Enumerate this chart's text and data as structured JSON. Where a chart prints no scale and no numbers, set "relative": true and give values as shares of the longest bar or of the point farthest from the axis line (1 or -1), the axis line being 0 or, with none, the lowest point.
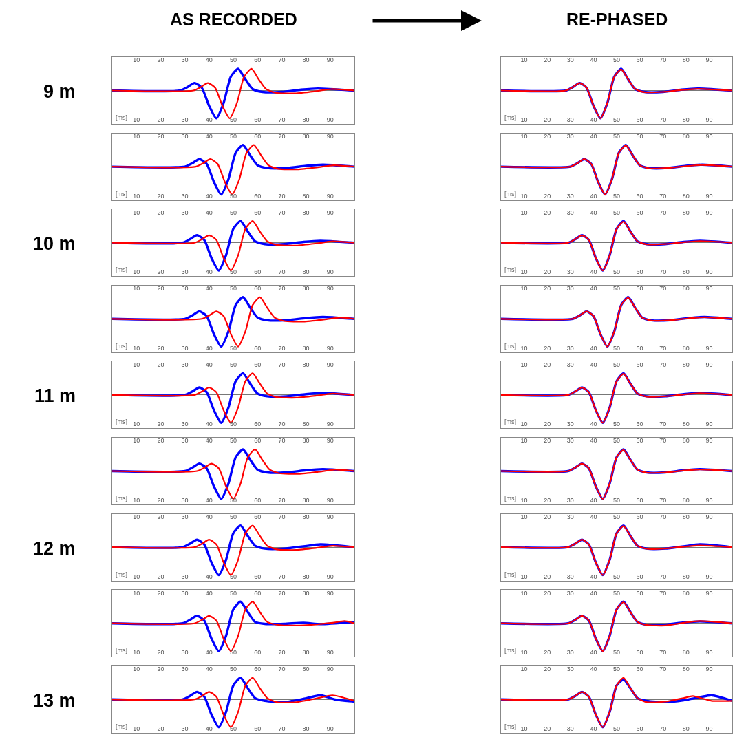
{
  "chart_data": [
    {
      "type": "line",
      "relative": true,
      "title": "AS RECORDED",
      "ylabel": "9 m",
      "xlabel": "[ms]",
      "xlim": [
        0,
        100
      ],
      "xticks": [
        10,
        20,
        30,
        40,
        50,
        60,
        70,
        80,
        90
      ],
      "x2lim": [
        0,
        100
      ],
      "x2ticks": [
        10,
        20,
        30,
        40,
        50,
        60,
        70,
        80,
        90
      ],
      "tick_labels": "x",
      "series": [
        {
          "color": "#0000ff",
          "x": [
            0,
            28,
            31,
            34,
            37,
            40,
            43,
            46,
            49,
            52,
            55,
            58,
            62,
            70,
            78,
            85,
            100
          ],
          "values": [
            0,
            0,
            0.12,
            0.27,
            0.1,
            -0.55,
            -1,
            -0.45,
            0.5,
            0.78,
            0.4,
            0.05,
            -0.05,
            -0.05,
            0.03,
            0.07,
            0
          ]
        },
        {
          "color": "#ff0000",
          "x": [
            0,
            33.5,
            36.5,
            39.5,
            42.5,
            45.5,
            48.5,
            51.5,
            54.5,
            57.5,
            60.5,
            63.5,
            67.5,
            75.5,
            83.5,
            90.5,
            100
          ],
          "values": [
            0,
            0,
            0.12,
            0.27,
            0.1,
            -0.55,
            -1,
            -0.45,
            0.5,
            0.78,
            0.4,
            0.05,
            -0.08,
            -0.1,
            -0.03,
            0.05,
            0
          ]
        }
      ]
    },
    {
      "type": "line",
      "relative": true,
      "title": "RE-PHASED",
      "xlabel": "[ms]",
      "xlim": [
        0,
        100
      ],
      "xticks": [
        10,
        20,
        30,
        40,
        50,
        60,
        70,
        80,
        90
      ],
      "x2lim": [
        0,
        100
      ],
      "x2ticks": [
        10,
        20,
        30,
        40,
        50,
        60,
        70,
        80,
        90
      ],
      "tick_labels": "x",
      "series": [
        {
          "color": "#0000ff",
          "x": [
            0,
            28,
            31,
            34,
            37,
            40,
            43,
            46,
            49,
            52,
            55,
            58,
            62,
            70,
            78,
            85,
            100
          ],
          "values": [
            0,
            0,
            0.12,
            0.27,
            0.1,
            -0.55,
            -1,
            -0.45,
            0.5,
            0.78,
            0.4,
            0.05,
            -0.05,
            -0.05,
            0.03,
            0.07,
            0
          ]
        },
        {
          "color": "#ff0000",
          "x": [
            0,
            28,
            31,
            34,
            37,
            40,
            43,
            46,
            49,
            52,
            55,
            58,
            62,
            70,
            78,
            85,
            100
          ],
          "values": [
            0,
            0,
            0.12,
            0.27,
            0.1,
            -0.55,
            -1,
            -0.45,
            0.5,
            0.76,
            0.4,
            0.05,
            -0.06,
            -0.05,
            0.02,
            0.06,
            0
          ]
        }
      ]
    },
    {
      "type": "line",
      "relative": true,
      "xlabel": "[ms]",
      "xlim": [
        0,
        100
      ],
      "xticks": [
        10,
        20,
        30,
        40,
        50,
        60,
        70,
        80,
        90
      ],
      "x2lim": [
        0,
        100
      ],
      "x2ticks": [
        10,
        20,
        30,
        40,
        50,
        60,
        70,
        80,
        90
      ],
      "tick_labels": "x",
      "series": [
        {
          "color": "#0000ff",
          "x": [
            0,
            30,
            33,
            36,
            39,
            42,
            45,
            48,
            51,
            54,
            57,
            60,
            64,
            72,
            80,
            87,
            100
          ],
          "values": [
            0,
            0,
            0.12,
            0.27,
            0.1,
            -0.55,
            -1,
            -0.45,
            0.5,
            0.78,
            0.4,
            0.05,
            -0.05,
            -0.05,
            0.03,
            0.07,
            0
          ]
        },
        {
          "color": "#ff0000",
          "x": [
            0,
            34.5,
            37.5,
            40.5,
            43.5,
            46.5,
            49.5,
            52.5,
            55.5,
            58.5,
            61.5,
            64.5,
            68.5,
            76.5,
            84.5,
            91.5,
            100
          ],
          "values": [
            0,
            0,
            0.12,
            0.27,
            0.1,
            -0.55,
            -1,
            -0.45,
            0.5,
            0.78,
            0.4,
            0.05,
            -0.08,
            -0.1,
            -0.03,
            0.05,
            0
          ]
        }
      ]
    },
    {
      "type": "line",
      "relative": true,
      "xlabel": "[ms]",
      "xlim": [
        0,
        100
      ],
      "xticks": [
        10,
        20,
        30,
        40,
        50,
        60,
        70,
        80,
        90
      ],
      "x2lim": [
        0,
        100
      ],
      "x2ticks": [
        10,
        20,
        30,
        40,
        50,
        60,
        70,
        80,
        90
      ],
      "tick_labels": "x",
      "series": [
        {
          "color": "#0000ff",
          "x": [
            0,
            30,
            33,
            36,
            39,
            42,
            45,
            48,
            51,
            54,
            57,
            60,
            64,
            72,
            80,
            87,
            100
          ],
          "values": [
            0,
            0,
            0.12,
            0.27,
            0.1,
            -0.55,
            -1,
            -0.45,
            0.5,
            0.78,
            0.4,
            0.05,
            -0.05,
            -0.05,
            0.03,
            0.07,
            0
          ]
        },
        {
          "color": "#ff0000",
          "x": [
            0,
            30,
            33,
            36,
            39,
            42,
            45,
            48,
            51,
            54,
            57,
            60,
            64,
            72,
            80,
            87,
            100
          ],
          "values": [
            0,
            0,
            0.12,
            0.27,
            0.1,
            -0.55,
            -1,
            -0.45,
            0.5,
            0.76,
            0.4,
            0.05,
            -0.06,
            -0.05,
            0.02,
            0.06,
            0
          ]
        }
      ]
    },
    {
      "type": "line",
      "relative": true,
      "ylabel": "10 m",
      "xlabel": "[ms]",
      "xlim": [
        0,
        100
      ],
      "xticks": [
        10,
        20,
        30,
        40,
        50,
        60,
        70,
        80,
        90
      ],
      "x2lim": [
        0,
        100
      ],
      "x2ticks": [
        10,
        20,
        30,
        40,
        50,
        60,
        70,
        80,
        90
      ],
      "tick_labels": "x",
      "series": [
        {
          "color": "#0000ff",
          "x": [
            0,
            29,
            32,
            35,
            38,
            41,
            44,
            47,
            50,
            53,
            56,
            59,
            63,
            71,
            79,
            86,
            100
          ],
          "values": [
            0,
            0,
            0.12,
            0.27,
            0.1,
            -0.55,
            -1,
            -0.45,
            0.5,
            0.78,
            0.4,
            0.05,
            -0.05,
            -0.05,
            0.03,
            0.07,
            0
          ]
        },
        {
          "color": "#ff0000",
          "x": [
            0,
            34,
            37,
            40,
            43,
            46,
            49,
            52,
            55,
            58,
            61,
            64,
            68,
            76,
            84,
            91,
            100
          ],
          "values": [
            0,
            0,
            0.12,
            0.27,
            0.1,
            -0.55,
            -1,
            -0.45,
            0.5,
            0.78,
            0.4,
            0.05,
            -0.08,
            -0.1,
            -0.03,
            0.05,
            0
          ]
        }
      ]
    },
    {
      "type": "line",
      "relative": true,
      "xlabel": "[ms]",
      "xlim": [
        0,
        100
      ],
      "xticks": [
        10,
        20,
        30,
        40,
        50,
        60,
        70,
        80,
        90
      ],
      "x2lim": [
        0,
        100
      ],
      "x2ticks": [
        10,
        20,
        30,
        40,
        50,
        60,
        70,
        80,
        90
      ],
      "tick_labels": "x",
      "series": [
        {
          "color": "#0000ff",
          "x": [
            0,
            29,
            32,
            35,
            38,
            41,
            44,
            47,
            50,
            53,
            56,
            59,
            63,
            71,
            79,
            86,
            100
          ],
          "values": [
            0,
            0,
            0.12,
            0.27,
            0.1,
            -0.55,
            -1,
            -0.45,
            0.5,
            0.78,
            0.4,
            0.05,
            -0.05,
            -0.05,
            0.03,
            0.07,
            0
          ]
        },
        {
          "color": "#ff0000",
          "x": [
            0,
            29,
            32,
            35,
            38,
            41,
            44,
            47,
            50,
            53,
            56,
            59,
            63,
            71,
            79,
            86,
            100
          ],
          "values": [
            0,
            0,
            0.12,
            0.27,
            0.1,
            -0.55,
            -1,
            -0.45,
            0.5,
            0.76,
            0.4,
            0.05,
            -0.06,
            -0.05,
            0.02,
            0.06,
            0
          ]
        }
      ]
    },
    {
      "type": "line",
      "relative": true,
      "xlabel": "[ms]",
      "xlim": [
        0,
        100
      ],
      "xticks": [
        10,
        20,
        30,
        40,
        50,
        60,
        70,
        80,
        90
      ],
      "x2lim": [
        0,
        100
      ],
      "x2ticks": [
        10,
        20,
        30,
        40,
        50,
        60,
        70,
        80,
        90
      ],
      "tick_labels": "x",
      "series": [
        {
          "color": "#0000ff",
          "x": [
            0,
            30,
            33,
            36,
            39,
            42,
            45,
            48,
            51,
            54,
            57,
            60,
            64,
            72,
            80,
            87,
            100
          ],
          "values": [
            0,
            0,
            0.12,
            0.27,
            0.1,
            -0.55,
            -1,
            -0.45,
            0.5,
            0.78,
            0.4,
            0.05,
            -0.05,
            -0.05,
            0.03,
            0.07,
            0
          ]
        },
        {
          "color": "#ff0000",
          "x": [
            0,
            37,
            40,
            43,
            46,
            49,
            52,
            55,
            58,
            61,
            64,
            67,
            71,
            79,
            87,
            94,
            100
          ],
          "values": [
            0,
            0,
            0.12,
            0.27,
            0.1,
            -0.55,
            -1,
            -0.45,
            0.5,
            0.78,
            0.4,
            0.05,
            -0.08,
            -0.1,
            -0.03,
            0.05,
            0
          ]
        }
      ]
    },
    {
      "type": "line",
      "relative": true,
      "xlabel": "[ms]",
      "xlim": [
        0,
        100
      ],
      "xticks": [
        10,
        20,
        30,
        40,
        50,
        60,
        70,
        80,
        90
      ],
      "x2lim": [
        0,
        100
      ],
      "x2ticks": [
        10,
        20,
        30,
        40,
        50,
        60,
        70,
        80,
        90
      ],
      "tick_labels": "x",
      "series": [
        {
          "color": "#0000ff",
          "x": [
            0,
            31,
            34,
            37,
            40,
            43,
            46,
            49,
            52,
            55,
            58,
            61,
            65,
            73,
            81,
            88,
            100
          ],
          "values": [
            0,
            0,
            0.12,
            0.27,
            0.1,
            -0.55,
            -1,
            -0.45,
            0.5,
            0.78,
            0.4,
            0.05,
            -0.05,
            -0.05,
            0.03,
            0.07,
            0
          ]
        },
        {
          "color": "#ff0000",
          "x": [
            0,
            31,
            34,
            37,
            40,
            43,
            46,
            49,
            52,
            55,
            58,
            61,
            65,
            73,
            81,
            88,
            100
          ],
          "values": [
            0,
            0,
            0.12,
            0.27,
            0.1,
            -0.55,
            -1,
            -0.45,
            0.5,
            0.76,
            0.4,
            0.05,
            -0.06,
            -0.05,
            0.02,
            0.06,
            0
          ]
        }
      ]
    },
    {
      "type": "line",
      "relative": true,
      "ylabel": "11 m",
      "xlabel": "[ms]",
      "xlim": [
        0,
        100
      ],
      "xticks": [
        10,
        20,
        30,
        40,
        50,
        60,
        70,
        80,
        90
      ],
      "x2lim": [
        0,
        100
      ],
      "x2ticks": [
        10,
        20,
        30,
        40,
        50,
        60,
        70,
        80,
        90
      ],
      "tick_labels": "x",
      "series": [
        {
          "color": "#0000ff",
          "x": [
            0,
            30,
            33,
            36,
            39,
            42,
            45,
            48,
            51,
            54,
            57,
            60,
            64,
            72,
            80,
            87,
            100
          ],
          "values": [
            0,
            0,
            0.12,
            0.27,
            0.1,
            -0.55,
            -1,
            -0.45,
            0.5,
            0.78,
            0.4,
            0.05,
            -0.05,
            -0.05,
            0.03,
            0.07,
            0
          ]
        },
        {
          "color": "#ff0000",
          "x": [
            0,
            34,
            37,
            40,
            43,
            46,
            49,
            52,
            55,
            58,
            61,
            64,
            68,
            76,
            84,
            91,
            100
          ],
          "values": [
            0,
            0,
            0.12,
            0.27,
            0.1,
            -0.55,
            -1,
            -0.45,
            0.5,
            0.78,
            0.4,
            0.05,
            -0.08,
            -0.1,
            -0.03,
            0.05,
            0
          ]
        }
      ]
    },
    {
      "type": "line",
      "relative": true,
      "xlabel": "[ms]",
      "xlim": [
        0,
        100
      ],
      "xticks": [
        10,
        20,
        30,
        40,
        50,
        60,
        70,
        80,
        90
      ],
      "x2lim": [
        0,
        100
      ],
      "x2ticks": [
        10,
        20,
        30,
        40,
        50,
        60,
        70,
        80,
        90
      ],
      "tick_labels": "x",
      "series": [
        {
          "color": "#0000ff",
          "x": [
            0,
            29,
            32,
            35,
            38,
            41,
            44,
            47,
            50,
            53,
            56,
            59,
            63,
            71,
            79,
            86,
            100
          ],
          "values": [
            0,
            0,
            0.12,
            0.27,
            0.1,
            -0.55,
            -1,
            -0.45,
            0.5,
            0.78,
            0.4,
            0.05,
            -0.05,
            -0.05,
            0.03,
            0.07,
            0
          ]
        },
        {
          "color": "#ff0000",
          "x": [
            0,
            29,
            32,
            35,
            38,
            41,
            44,
            47,
            50,
            53,
            56,
            59,
            63,
            71,
            79,
            86,
            100
          ],
          "values": [
            0,
            0,
            0.12,
            0.27,
            0.1,
            -0.55,
            -1,
            -0.45,
            0.5,
            0.76,
            0.4,
            0.05,
            -0.06,
            -0.05,
            0.02,
            0.06,
            0
          ]
        }
      ]
    },
    {
      "type": "line",
      "relative": true,
      "xlabel": "[ms]",
      "xlim": [
        0,
        100
      ],
      "xticks": [
        10,
        20,
        30,
        40,
        50,
        60,
        70,
        80,
        90
      ],
      "x2lim": [
        0,
        100
      ],
      "x2ticks": [
        10,
        20,
        30,
        40,
        50,
        60,
        70,
        80,
        90
      ],
      "tick_labels": "x",
      "series": [
        {
          "color": "#0000ff",
          "x": [
            0,
            30,
            33,
            36,
            39,
            42,
            45,
            48,
            51,
            54,
            57,
            60,
            64,
            72,
            80,
            87,
            100
          ],
          "values": [
            0,
            0,
            0.12,
            0.27,
            0.1,
            -0.55,
            -1,
            -0.45,
            0.5,
            0.78,
            0.4,
            0.05,
            -0.05,
            -0.05,
            0.03,
            0.07,
            0
          ]
        },
        {
          "color": "#ff0000",
          "x": [
            0,
            35,
            38,
            41,
            44,
            47,
            50,
            53,
            56,
            59,
            62,
            65,
            69,
            77,
            85,
            92,
            100
          ],
          "values": [
            0,
            0,
            0.12,
            0.27,
            0.1,
            -0.55,
            -1,
            -0.45,
            0.5,
            0.78,
            0.4,
            0.05,
            -0.08,
            -0.1,
            -0.03,
            0.05,
            0
          ]
        }
      ]
    },
    {
      "type": "line",
      "relative": true,
      "xlabel": "[ms]",
      "xlim": [
        0,
        100
      ],
      "xticks": [
        10,
        20,
        30,
        40,
        50,
        60,
        70,
        80,
        90
      ],
      "x2lim": [
        0,
        100
      ],
      "x2ticks": [
        10,
        20,
        30,
        40,
        50,
        60,
        70,
        80,
        90
      ],
      "tick_labels": "x",
      "series": [
        {
          "color": "#0000ff",
          "x": [
            0,
            29,
            32,
            35,
            38,
            41,
            44,
            47,
            50,
            53,
            56,
            59,
            63,
            71,
            79,
            86,
            100
          ],
          "values": [
            0,
            0,
            0.12,
            0.27,
            0.1,
            -0.55,
            -1,
            -0.45,
            0.5,
            0.78,
            0.4,
            0.05,
            -0.05,
            -0.05,
            0.03,
            0.07,
            0
          ]
        },
        {
          "color": "#ff0000",
          "x": [
            0,
            29,
            32,
            35,
            38,
            41,
            44,
            47,
            50,
            53,
            56,
            59,
            63,
            71,
            79,
            86,
            100
          ],
          "values": [
            0,
            0,
            0.12,
            0.27,
            0.1,
            -0.55,
            -1,
            -0.45,
            0.5,
            0.76,
            0.4,
            0.05,
            -0.06,
            -0.05,
            0.02,
            0.06,
            0
          ]
        }
      ]
    },
    {
      "type": "line",
      "relative": true,
      "ylabel": "12 m",
      "xlabel": "[ms]",
      "xlim": [
        0,
        100
      ],
      "xticks": [
        10,
        20,
        30,
        40,
        50,
        60,
        70,
        80,
        90
      ],
      "x2lim": [
        0,
        100
      ],
      "x2ticks": [
        10,
        20,
        30,
        40,
        50,
        60,
        70,
        80,
        90
      ],
      "tick_labels": "x",
      "series": [
        {
          "color": "#0000ff",
          "x": [
            0,
            29,
            32,
            35,
            38,
            41,
            44,
            47,
            50,
            53,
            56,
            59,
            63,
            71,
            79,
            86,
            100
          ],
          "values": [
            0,
            0,
            0.12,
            0.27,
            0.1,
            -0.55,
            -1,
            -0.45,
            0.5,
            0.78,
            0.4,
            0.05,
            -0.05,
            -0.05,
            0.03,
            0.1,
            0
          ]
        },
        {
          "color": "#ff0000",
          "x": [
            0,
            34,
            37,
            40,
            43,
            46,
            49,
            52,
            55,
            58,
            61,
            64,
            68,
            76,
            84,
            91,
            100
          ],
          "values": [
            0,
            0,
            0.12,
            0.27,
            0.1,
            -0.55,
            -1,
            -0.45,
            0.5,
            0.78,
            0.4,
            0.05,
            -0.08,
            -0.1,
            -0.03,
            0.05,
            0
          ]
        }
      ]
    },
    {
      "type": "line",
      "relative": true,
      "xlabel": "[ms]",
      "xlim": [
        0,
        100
      ],
      "xticks": [
        10,
        20,
        30,
        40,
        50,
        60,
        70,
        80,
        90
      ],
      "x2lim": [
        0,
        100
      ],
      "x2ticks": [
        10,
        20,
        30,
        40,
        50,
        60,
        70,
        80,
        90
      ],
      "tick_labels": "x",
      "series": [
        {
          "color": "#0000ff",
          "x": [
            0,
            29,
            32,
            35,
            38,
            41,
            44,
            47,
            50,
            53,
            56,
            59,
            63,
            71,
            79,
            86,
            100
          ],
          "values": [
            0,
            0,
            0.12,
            0.27,
            0.1,
            -0.55,
            -1,
            -0.45,
            0.5,
            0.78,
            0.4,
            0.05,
            -0.05,
            -0.05,
            0.03,
            0.1,
            0
          ]
        },
        {
          "color": "#ff0000",
          "x": [
            0,
            29,
            32,
            35,
            38,
            41,
            44,
            47,
            50,
            53,
            56,
            59,
            63,
            71,
            79,
            86,
            100
          ],
          "values": [
            0,
            0,
            0.12,
            0.27,
            0.1,
            -0.55,
            -1,
            -0.45,
            0.5,
            0.76,
            0.4,
            0.05,
            -0.06,
            -0.05,
            0.02,
            0.06,
            0
          ]
        }
      ]
    },
    {
      "type": "line",
      "relative": true,
      "xlabel": "[ms]",
      "xlim": [
        0,
        100
      ],
      "xticks": [
        10,
        20,
        30,
        40,
        50,
        60,
        70,
        80,
        90
      ],
      "x2lim": [
        0,
        100
      ],
      "x2ticks": [
        10,
        20,
        30,
        40,
        50,
        60,
        70,
        80,
        90
      ],
      "tick_labels": "x",
      "series": [
        {
          "color": "#0000ff",
          "x": [
            0,
            29,
            32,
            35,
            38,
            41,
            44,
            47,
            50,
            53,
            56,
            59,
            63,
            71,
            79,
            86,
            100
          ],
          "values": [
            0,
            0,
            0.12,
            0.27,
            0.1,
            -0.55,
            -1,
            -0.45,
            0.5,
            0.78,
            0.4,
            0.05,
            -0.02,
            -0.02,
            0.02,
            -0.03,
            0.05
          ]
        },
        {
          "color": "#ff0000",
          "x": [
            0,
            34,
            37,
            40,
            43,
            46,
            49,
            52,
            55,
            58,
            61,
            64,
            68,
            76,
            84,
            91,
            96,
            100
          ],
          "values": [
            0,
            0,
            0.12,
            0.27,
            0.1,
            -0.55,
            -1,
            -0.45,
            0.5,
            0.78,
            0.4,
            0.05,
            -0.05,
            -0.08,
            -0.04,
            0.02,
            0.08,
            0
          ]
        }
      ]
    },
    {
      "type": "line",
      "relative": true,
      "xlabel": "[ms]",
      "xlim": [
        0,
        100
      ],
      "xticks": [
        10,
        20,
        30,
        40,
        50,
        60,
        70,
        80,
        90
      ],
      "x2lim": [
        0,
        100
      ],
      "x2ticks": [
        10,
        20,
        30,
        40,
        50,
        60,
        70,
        80,
        90
      ],
      "tick_labels": "x",
      "series": [
        {
          "color": "#0000ff",
          "x": [
            0,
            29,
            32,
            35,
            38,
            41,
            44,
            47,
            50,
            53,
            56,
            59,
            63,
            71,
            79,
            86,
            100
          ],
          "values": [
            0,
            0,
            0.12,
            0.27,
            0.1,
            -0.55,
            -1,
            -0.45,
            0.5,
            0.78,
            0.4,
            0.05,
            -0.05,
            -0.05,
            0.03,
            0.07,
            0
          ]
        },
        {
          "color": "#ff0000",
          "x": [
            0,
            29,
            32,
            35,
            38,
            41,
            44,
            47,
            50,
            53,
            56,
            59,
            63,
            71,
            79,
            86,
            100
          ],
          "values": [
            0,
            0,
            0.12,
            0.27,
            0.1,
            -0.55,
            -1,
            -0.45,
            0.5,
            0.76,
            0.4,
            0.05,
            -0.06,
            -0.08,
            0.02,
            0.08,
            0
          ]
        }
      ]
    },
    {
      "type": "line",
      "relative": true,
      "ylabel": "13 m",
      "xlabel": "[ms]",
      "xlim": [
        0,
        100
      ],
      "xticks": [
        10,
        20,
        30,
        40,
        50,
        60,
        70,
        80,
        90
      ],
      "x2lim": [
        0,
        100
      ],
      "x2ticks": [
        10,
        20,
        30,
        40,
        50,
        60,
        70,
        80,
        90
      ],
      "tick_labels": "x",
      "series": [
        {
          "color": "#0000ff",
          "x": [
            0,
            29,
            32,
            35,
            38,
            41,
            44,
            47,
            50,
            53,
            56,
            59,
            63,
            71,
            79,
            86,
            92,
            100
          ],
          "values": [
            0,
            0,
            0.12,
            0.27,
            0.1,
            -0.55,
            -1,
            -0.45,
            0.5,
            0.78,
            0.4,
            0.05,
            -0.05,
            -0.1,
            0.02,
            0.15,
            0,
            -0.08
          ]
        },
        {
          "color": "#ff0000",
          "x": [
            0,
            34,
            37,
            40,
            43,
            46,
            49,
            52,
            55,
            58,
            61,
            64,
            68,
            76,
            84,
            91,
            100
          ],
          "values": [
            0,
            0,
            0.12,
            0.27,
            0.1,
            -0.55,
            -1,
            -0.45,
            0.5,
            0.78,
            0.4,
            0.05,
            -0.1,
            -0.1,
            0.03,
            0.15,
            -0.05
          ]
        }
      ]
    },
    {
      "type": "line",
      "relative": true,
      "xlabel": "[ms]",
      "xlim": [
        0,
        100
      ],
      "xticks": [
        10,
        20,
        30,
        40,
        50,
        60,
        70,
        80,
        90
      ],
      "x2lim": [
        0,
        100
      ],
      "x2ticks": [
        10,
        20,
        30,
        40,
        50,
        60,
        70,
        80,
        90
      ],
      "tick_labels": "x",
      "series": [
        {
          "color": "#0000ff",
          "x": [
            0,
            29,
            32,
            35,
            38,
            41,
            44,
            47,
            50,
            53,
            56,
            59,
            63,
            71,
            79,
            86,
            91,
            100
          ],
          "values": [
            0,
            0,
            0.12,
            0.27,
            0.1,
            -0.55,
            -1,
            -0.45,
            0.5,
            0.72,
            0.4,
            0.05,
            -0.05,
            -0.1,
            -0.03,
            0.08,
            0.15,
            -0.05
          ]
        },
        {
          "color": "#ff0000",
          "x": [
            0,
            29,
            32,
            35,
            38,
            41,
            44,
            47,
            50,
            53,
            56,
            59,
            63,
            71,
            79,
            83,
            91,
            100
          ],
          "values": [
            0,
            0,
            0.12,
            0.27,
            0.1,
            -0.55,
            -1,
            -0.45,
            0.5,
            0.78,
            0.4,
            0.05,
            -0.1,
            -0.08,
            0.05,
            0.12,
            -0.05,
            -0.05
          ]
        }
      ]
    }
  ]
}
